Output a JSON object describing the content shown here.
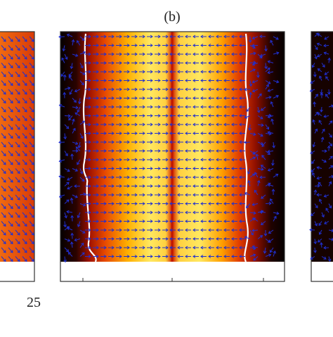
{
  "panels": [
    {
      "label": null,
      "tick_labels": [
        "25"
      ]
    },
    {
      "label": "(b)",
      "tick_labels": []
    },
    {
      "label": null,
      "tick_labels": []
    }
  ]
}
